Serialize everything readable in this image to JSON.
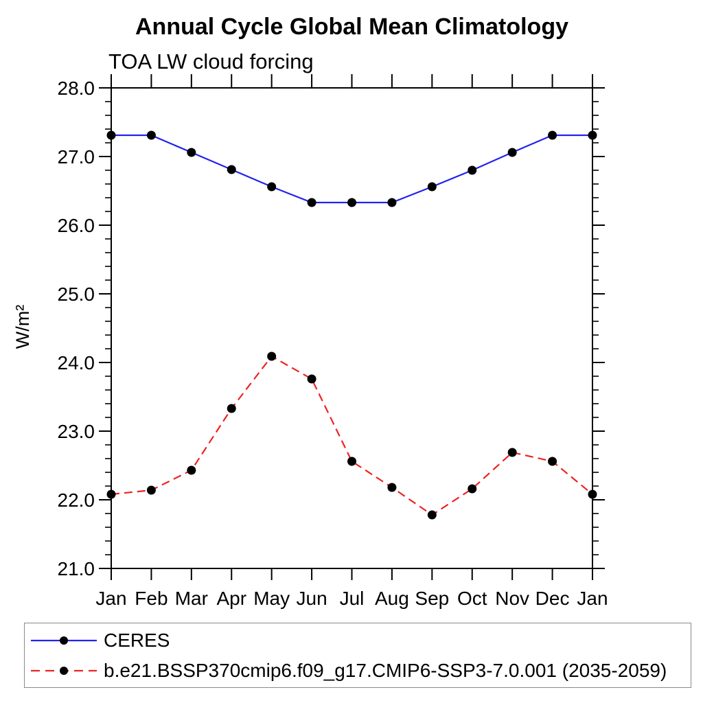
{
  "chart_data": {
    "type": "line",
    "title": "Annual Cycle Global Mean Climatology",
    "subtitle": "TOA LW cloud forcing",
    "ylabel": "W/m²",
    "xlabel": "",
    "categories": [
      "Jan",
      "Feb",
      "Mar",
      "Apr",
      "May",
      "Jun",
      "Jul",
      "Aug",
      "Sep",
      "Oct",
      "Nov",
      "Dec",
      "Jan"
    ],
    "ylim": [
      21.0,
      28.0
    ],
    "ytick_major_step": 1.0,
    "ytick_minor_step": 0.2,
    "ytick_labels": [
      "21.0",
      "22.0",
      "23.0",
      "24.0",
      "25.0",
      "26.0",
      "27.0",
      "28.0"
    ],
    "grid": false,
    "legend_position": "bottom-left-box",
    "series": [
      {
        "name": "CERES",
        "color": "#2222ee",
        "line_style": "solid",
        "marker": "filled-circle",
        "marker_color": "#000000",
        "values": [
          27.31,
          27.31,
          27.06,
          26.81,
          26.56,
          26.33,
          26.33,
          26.33,
          26.56,
          26.8,
          27.06,
          27.31,
          27.31
        ]
      },
      {
        "name": "b.e21.BSSP370cmip6.f09_g17.CMIP6-SSP3-7.0.001 (2035-2059)",
        "color": "#ee2222",
        "line_style": "dashed",
        "marker": "filled-circle",
        "marker_color": "#000000",
        "values": [
          22.08,
          22.14,
          22.43,
          23.33,
          24.09,
          23.76,
          22.56,
          22.18,
          21.78,
          22.16,
          22.69,
          22.56,
          22.08
        ]
      }
    ],
    "axis_color": "#000000",
    "background_color": "#ffffff"
  }
}
